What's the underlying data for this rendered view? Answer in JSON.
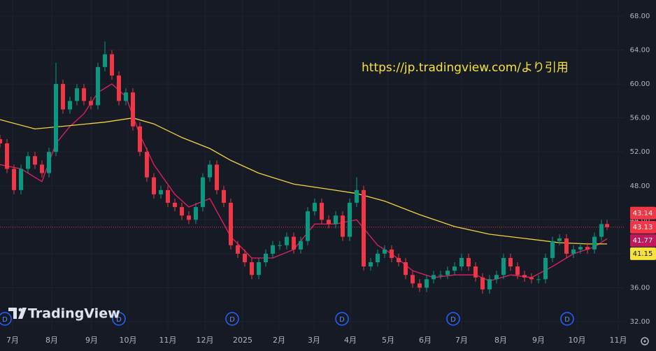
{
  "chart_data": {
    "type": "candlestick",
    "watermark": "https://jp.tradingview.com/より引用",
    "logo": "TradingView",
    "up_color": "#089981",
    "down_color": "#f23645",
    "xlim": [
      0,
      357.2
    ],
    "ylim": [
      32,
      68
    ],
    "grid": true,
    "yticks": [
      {
        "value": 32,
        "label": "32.00"
      },
      {
        "value": 36,
        "label": "36.00"
      },
      {
        "value": 40,
        "label": "40.00"
      },
      {
        "value": 44,
        "label": "44.00"
      },
      {
        "value": 48,
        "label": "48.00"
      },
      {
        "value": 52,
        "label": "52.00"
      },
      {
        "value": 56,
        "label": "56.00"
      },
      {
        "value": 60,
        "label": "60.00"
      },
      {
        "value": 64,
        "label": "64.00"
      },
      {
        "value": 68,
        "label": "68.00"
      }
    ],
    "xticks": [
      {
        "value": 7.2,
        "label": "7月"
      },
      {
        "value": 29.6,
        "label": "8月"
      },
      {
        "value": 52.4,
        "label": "9月"
      },
      {
        "value": 73.2,
        "label": "10月"
      },
      {
        "value": 96,
        "label": "11月"
      },
      {
        "value": 117.2,
        "label": "12月"
      },
      {
        "value": 138.8,
        "label": "2025"
      },
      {
        "value": 159.6,
        "label": "2月"
      },
      {
        "value": 179.6,
        "label": "3月"
      },
      {
        "value": 200.4,
        "label": "4月"
      },
      {
        "value": 222,
        "label": "5月"
      },
      {
        "value": 243.2,
        "label": "6月"
      },
      {
        "value": 264,
        "label": "7月"
      },
      {
        "value": 286.4,
        "label": "8月"
      },
      {
        "value": 308,
        "label": "9月"
      },
      {
        "value": 330,
        "label": "10月"
      },
      {
        "value": 353.6,
        "label": "11月"
      }
    ],
    "x": [
      0,
      4,
      8,
      12,
      16,
      20,
      24,
      28,
      32,
      36,
      40,
      44,
      48,
      52,
      56,
      60,
      64,
      68,
      72,
      76,
      80,
      84,
      88,
      92,
      96,
      100,
      104,
      108,
      112,
      116,
      120,
      124,
      128,
      132,
      136,
      140,
      144,
      148,
      152,
      156,
      160,
      164,
      168,
      172,
      176,
      180,
      184,
      188,
      192,
      196,
      200,
      204,
      208,
      212,
      216,
      220,
      224,
      228,
      232,
      236,
      240,
      244,
      248,
      252,
      256,
      260,
      264,
      268,
      272,
      276,
      280,
      284,
      288,
      292,
      296,
      300,
      304,
      308,
      312,
      316,
      320,
      324,
      328,
      332,
      336,
      340,
      344,
      347.2
    ],
    "open": [
      53.5,
      53,
      50,
      47.5,
      50,
      51.5,
      50.5,
      49.5,
      52,
      60,
      57,
      58,
      59.5,
      58,
      57.5,
      62,
      63.5,
      61,
      58,
      59,
      55,
      52,
      49,
      47,
      47.5,
      46,
      45.5,
      44.5,
      44,
      45.5,
      49,
      50.5,
      47.5,
      46,
      41,
      40,
      39,
      37.5,
      39,
      40,
      41,
      41,
      42,
      40.5,
      41.5,
      45,
      46,
      44,
      43.5,
      44.5,
      42,
      46,
      47.5,
      38.5,
      39,
      40,
      40.5,
      39.5,
      39,
      37.5,
      36.5,
      36,
      37,
      37.5,
      37.5,
      38,
      38.5,
      39.5,
      38.5,
      37.2,
      35.8,
      37,
      37.5,
      39.5,
      38.5,
      37.5,
      37.2,
      37,
      37,
      39.5,
      41.5,
      41.8,
      40,
      40.5,
      40.8,
      40.5,
      42,
      43.5
    ],
    "high": [
      54,
      53.5,
      50.5,
      50.5,
      52,
      52,
      51,
      52.5,
      62.5,
      60.5,
      58.5,
      60,
      60,
      58.5,
      62.5,
      65,
      64,
      61.5,
      59.5,
      59.5,
      55.5,
      52.5,
      49.5,
      48,
      48,
      46.5,
      46,
      45,
      46,
      49.5,
      51,
      51,
      48,
      46.5,
      41.5,
      40.5,
      39.5,
      39.5,
      40.5,
      41.5,
      41.5,
      42.5,
      42.5,
      42,
      45.5,
      46.5,
      46.5,
      44.5,
      45,
      45,
      46.5,
      49,
      48,
      39.5,
      40.5,
      41,
      41,
      40,
      39.5,
      38,
      37,
      37.5,
      38,
      38,
      38.5,
      39,
      40,
      40,
      39,
      37.7,
      37.5,
      38,
      40,
      40,
      39,
      38,
      37.7,
      37.5,
      40,
      42,
      42.3,
      42.3,
      41,
      41.3,
      41.3,
      42.5,
      44,
      44
    ],
    "low": [
      52.5,
      49.5,
      47,
      47,
      49.5,
      50,
      49,
      49,
      51.5,
      56.5,
      56.5,
      57.5,
      57.5,
      57,
      57,
      61.5,
      60.5,
      57.5,
      57.5,
      54.5,
      51.5,
      48.5,
      46.5,
      46.5,
      45.5,
      45,
      44,
      43.5,
      43.5,
      45,
      48.5,
      47,
      45.5,
      40.5,
      39.5,
      38.5,
      37,
      37,
      38.5,
      39.5,
      40.5,
      40.5,
      40,
      40,
      41,
      44.5,
      43.5,
      43,
      43,
      41.5,
      41.5,
      45.5,
      38,
      38,
      38.5,
      39.5,
      39,
      38.5,
      37,
      36,
      35.5,
      35.5,
      36.5,
      37,
      37,
      37.5,
      38,
      38,
      36.7,
      35.3,
      35.3,
      36.5,
      37,
      38,
      37,
      36.7,
      36.5,
      36.5,
      36.5,
      39,
      41,
      39.5,
      39.5,
      40,
      40,
      40,
      41.5,
      42.8
    ],
    "close": [
      53,
      50,
      47.5,
      50,
      51.5,
      50.5,
      49.5,
      52,
      60,
      57,
      58,
      59.5,
      58,
      57.5,
      62,
      63.5,
      61,
      58,
      59,
      55,
      52,
      49,
      47,
      47.5,
      46,
      45.5,
      44.5,
      44,
      45.5,
      49,
      50.5,
      47.5,
      46,
      41,
      40,
      39,
      37.5,
      39,
      40,
      41,
      41,
      42,
      40.5,
      41.5,
      45,
      46,
      44,
      43.5,
      44.5,
      42,
      46,
      47.5,
      38.5,
      39,
      40,
      40.5,
      39.5,
      39,
      37.5,
      36.5,
      36,
      37,
      37.5,
      37.5,
      38,
      38.5,
      39.5,
      38.5,
      37.2,
      35.8,
      37,
      37.5,
      39.5,
      38.5,
      37.5,
      37.2,
      37,
      37,
      39.5,
      41.5,
      41.8,
      40,
      40.5,
      40.8,
      40.5,
      42,
      43.5,
      43.13
    ],
    "moving_averages": [
      {
        "color": "#e91e63",
        "x": [
          0,
          12,
          24,
          32,
          40,
          48,
          56,
          64,
          72,
          80,
          88,
          100,
          108,
          120,
          132,
          144,
          156,
          168,
          180,
          192,
          204,
          216,
          224,
          236,
          248,
          260,
          272,
          280,
          292,
          304,
          316,
          328,
          340,
          347.2
        ],
        "values": [
          50.5,
          50,
          48.5,
          53,
          55,
          56.5,
          59,
          60,
          58.5,
          54,
          50.5,
          47,
          45.5,
          46.5,
          42,
          39.5,
          39.5,
          40.5,
          43.5,
          43.5,
          44,
          41,
          40,
          38,
          37.2,
          37.5,
          37.5,
          36.8,
          37.5,
          37.2,
          38.5,
          40,
          40.8,
          41.77
        ]
      },
      {
        "color": "#f5d33b",
        "x": [
          0,
          20,
          40,
          60,
          76,
          88,
          104,
          120,
          132,
          148,
          168,
          188,
          204,
          220,
          240,
          260,
          280,
          300,
          320,
          336,
          347.2
        ],
        "values": [
          55.8,
          54.7,
          55.1,
          55.5,
          56,
          55.3,
          53.7,
          52.4,
          51,
          49.5,
          48.2,
          47.6,
          47.1,
          46.2,
          44.6,
          43.2,
          42.3,
          41.8,
          41.3,
          41.15,
          41.15
        ]
      }
    ],
    "last_price": 43.13,
    "price_badges": [
      {
        "value": 43.14,
        "color": "#f23645"
      },
      {
        "value": 43.13,
        "color": "#f23645"
      },
      {
        "value": 41.77,
        "color": "#c2185b"
      },
      {
        "value": 41.15,
        "color": "#f5e33b"
      }
    ],
    "dividend_markers": {
      "label": "D",
      "x": [
        2.8,
        68,
        132.8,
        195.6,
        259.2,
        324.4
      ]
    }
  }
}
